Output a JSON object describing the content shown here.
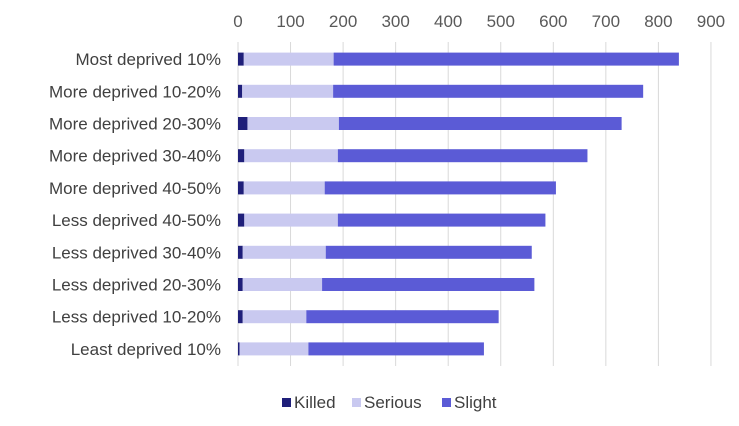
{
  "chart_data": {
    "type": "bar",
    "orientation": "horizontal",
    "stacked": true,
    "title": "",
    "xlabel": "",
    "ylabel": "",
    "xlim": [
      0,
      900
    ],
    "x_ticks": [
      0,
      100,
      200,
      300,
      400,
      500,
      600,
      700,
      800,
      900
    ],
    "x_axis_position": "top",
    "grid": true,
    "legend_position": "bottom",
    "categories": [
      "Most deprived 10%",
      "More deprived 10-20%",
      "More deprived 20-30%",
      "More deprived 30-40%",
      "More deprived 40-50%",
      "Less deprived 40-50%",
      "Less deprived 30-40%",
      "Less deprived 20-30%",
      "Less deprived 10-20%",
      "Least deprived 10%"
    ],
    "series": [
      {
        "name": "Killed",
        "color": "#1f1f7a",
        "values": [
          11,
          8,
          18,
          12,
          11,
          12,
          9,
          9,
          9,
          3
        ]
      },
      {
        "name": "Serious",
        "color": "#c9c9f0",
        "values": [
          171,
          173,
          174,
          178,
          154,
          178,
          158,
          151,
          121,
          131
        ]
      },
      {
        "name": "Slight",
        "color": "#5b5bd6",
        "values": [
          657,
          590,
          538,
          475,
          440,
          395,
          392,
          404,
          366,
          334
        ]
      }
    ]
  }
}
